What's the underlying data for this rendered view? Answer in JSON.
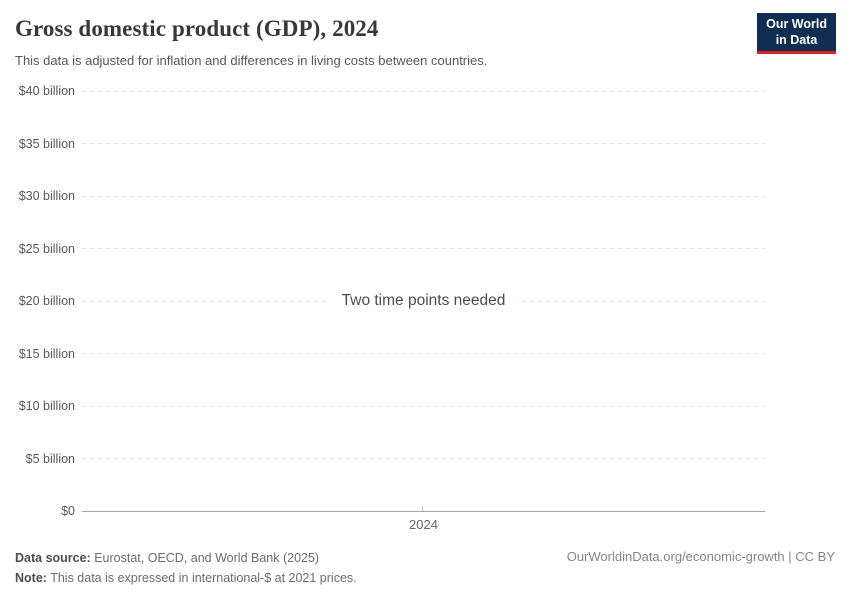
{
  "header": {
    "title": "Gross domestic product (GDP), 2024",
    "subtitle": "This data is adjusted for inflation and differences in living costs between countries."
  },
  "logo": {
    "line1": "Our World",
    "line2": "in Data"
  },
  "chart_data": {
    "type": "line",
    "title": "Gross domestic product (GDP), 2024",
    "empty_state_message": "Two time points needed",
    "series": [],
    "x_tick_labels": [
      "2024"
    ],
    "y_tick_labels": [
      "$40 billion",
      "$35 billion",
      "$30 billion",
      "$25 billion",
      "$20 billion",
      "$15 billion",
      "$10 billion",
      "$5 billion",
      "$0"
    ],
    "y_tick_values_billion": [
      40,
      35,
      30,
      25,
      20,
      15,
      10,
      5,
      0
    ],
    "ylim_billion": [
      0,
      40
    ],
    "xlabel": "",
    "ylabel": "",
    "grid": true,
    "legend": "none"
  },
  "footer": {
    "data_source_label": "Data source:",
    "data_source": "Eurostat, OECD, and World Bank (2025)",
    "note_label": "Note:",
    "note": "This data is expressed in international-$ at 2021 prices.",
    "attribution": "OurWorldinData.org/economic-growth | CC BY"
  },
  "colors": {
    "logo_background": "#0f2e52",
    "logo_accent_red": "#dc2327",
    "grid_line": "#e4e4e4",
    "axis_line": "#a5a5a5"
  }
}
